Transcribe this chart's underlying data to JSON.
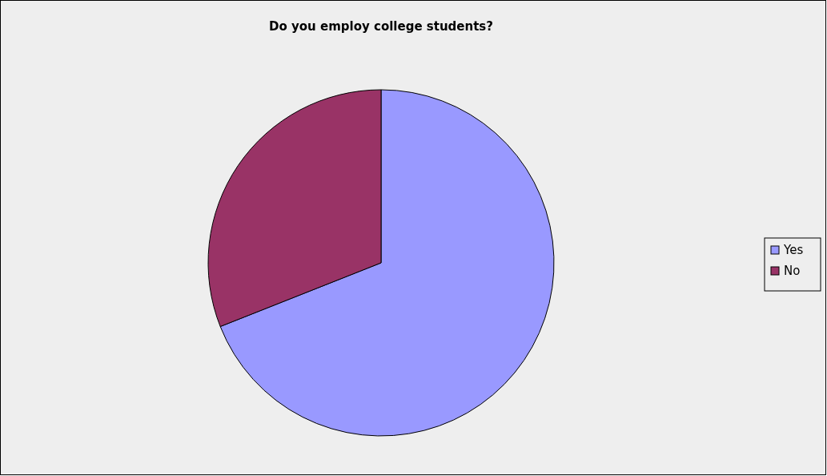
{
  "chart_data": {
    "type": "pie",
    "title": "Do you employ college students?",
    "categories": [
      "Yes",
      "No"
    ],
    "values": [
      69,
      31
    ],
    "colors": [
      "#9999ff",
      "#993366"
    ],
    "legend": "right"
  }
}
